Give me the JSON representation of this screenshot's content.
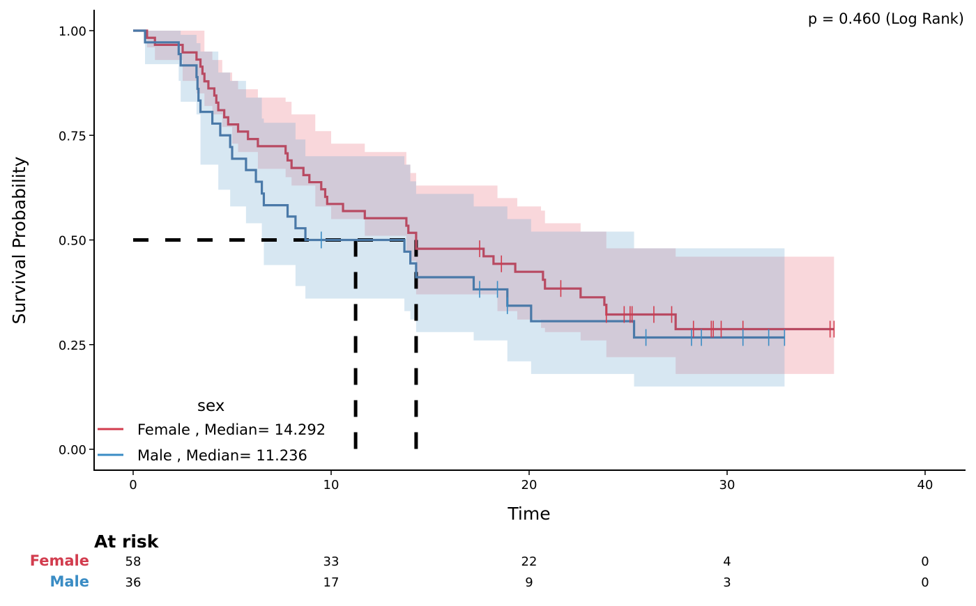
{
  "chart_data": {
    "type": "line",
    "subtype": "kaplan-meier",
    "annotation": "p = 0.460 (Log Rank)",
    "xlabel": "Time",
    "ylabel": "Survival Probability",
    "xlim": [
      -2,
      42
    ],
    "ylim": [
      -0.05,
      1.05
    ],
    "x_ticks": [
      0,
      10,
      20,
      30,
      40
    ],
    "x_tick_labels": [
      "0",
      "10",
      "20",
      "30",
      "40"
    ],
    "y_ticks": [
      0,
      0.25,
      0.5,
      0.75,
      1.0
    ],
    "y_tick_labels": [
      "0.00",
      "0.25",
      "0.50",
      "0.75",
      "1.00"
    ],
    "legend": {
      "title": "sex",
      "placement": "bottom-left"
    },
    "median_line_y": 0.5,
    "series": [
      {
        "name": "Female",
        "legend_label": "Female , Median= 14.292",
        "median": 14.292,
        "line_color": "#b84a62",
        "censor_color": "#d23c4e",
        "band_color": "#e8707f",
        "steps": [
          [
            0,
            1.0
          ],
          [
            0.7,
            0.983
          ],
          [
            1.1,
            0.966
          ],
          [
            2.5,
            0.948
          ],
          [
            3.2,
            0.931
          ],
          [
            3.4,
            0.914
          ],
          [
            3.5,
            0.897
          ],
          [
            3.6,
            0.879
          ],
          [
            3.8,
            0.862
          ],
          [
            4.1,
            0.845
          ],
          [
            4.2,
            0.828
          ],
          [
            4.3,
            0.81
          ],
          [
            4.6,
            0.793
          ],
          [
            4.8,
            0.776
          ],
          [
            5.3,
            0.759
          ],
          [
            5.8,
            0.741
          ],
          [
            6.3,
            0.724
          ],
          [
            7.7,
            0.707
          ],
          [
            7.8,
            0.69
          ],
          [
            8.0,
            0.672
          ],
          [
            8.6,
            0.655
          ],
          [
            8.9,
            0.638
          ],
          [
            9.5,
            0.621
          ],
          [
            9.7,
            0.603
          ],
          [
            9.8,
            0.586
          ],
          [
            10.6,
            0.569
          ],
          [
            11.7,
            0.552
          ],
          [
            13.8,
            0.534
          ],
          [
            13.9,
            0.517
          ],
          [
            14.292,
            0.479
          ],
          [
            17.7,
            0.461
          ],
          [
            18.2,
            0.443
          ],
          [
            19.3,
            0.424
          ],
          [
            20.7,
            0.405
          ],
          [
            20.8,
            0.384
          ],
          [
            22.6,
            0.363
          ],
          [
            23.8,
            0.345
          ],
          [
            23.9,
            0.322
          ],
          [
            27.4,
            0.287
          ],
          [
            35.4,
            0.287
          ]
        ],
        "censored": [
          17.5,
          18.6,
          21.6,
          23.9,
          24.8,
          25.1,
          25.2,
          26.3,
          27.2,
          28.3,
          29.2,
          29.3,
          29.7,
          30.8,
          35.2,
          35.4
        ],
        "ci": [
          [
            0,
            1.0,
            1.0
          ],
          [
            0.7,
            0.96,
            1.0
          ],
          [
            1.1,
            0.93,
            1.0
          ],
          [
            2.5,
            0.88,
            1.0
          ],
          [
            3.2,
            0.85,
            1.0
          ],
          [
            3.6,
            0.82,
            0.95
          ],
          [
            4.0,
            0.8,
            0.93
          ],
          [
            4.5,
            0.77,
            0.9
          ],
          [
            5.0,
            0.73,
            0.88
          ],
          [
            5.3,
            0.71,
            0.86
          ],
          [
            6.3,
            0.67,
            0.84
          ],
          [
            7.7,
            0.65,
            0.83
          ],
          [
            8.0,
            0.63,
            0.8
          ],
          [
            9.2,
            0.58,
            0.76
          ],
          [
            10.0,
            0.55,
            0.73
          ],
          [
            11.7,
            0.51,
            0.71
          ],
          [
            13.8,
            0.47,
            0.68
          ],
          [
            14.0,
            0.45,
            0.66
          ],
          [
            14.292,
            0.37,
            0.63
          ],
          [
            17.0,
            0.37,
            0.63
          ],
          [
            18.4,
            0.33,
            0.6
          ],
          [
            19.4,
            0.31,
            0.58
          ],
          [
            20.6,
            0.29,
            0.57
          ],
          [
            20.8,
            0.28,
            0.54
          ],
          [
            21.6,
            0.28,
            0.54
          ],
          [
            22.6,
            0.26,
            0.52
          ],
          [
            23.9,
            0.22,
            0.48
          ],
          [
            27.4,
            0.18,
            0.46
          ],
          [
            35.4,
            0.18,
            0.45
          ]
        ]
      },
      {
        "name": "Male",
        "legend_label": "Male , Median= 11.236",
        "median": 11.236,
        "line_color": "#4a79a8",
        "censor_color": "#3a8cc4",
        "band_color": "#6fa8d0",
        "steps": [
          [
            0,
            1.0
          ],
          [
            0.6,
            0.972
          ],
          [
            2.3,
            0.944
          ],
          [
            2.4,
            0.917
          ],
          [
            3.2,
            0.889
          ],
          [
            3.25,
            0.861
          ],
          [
            3.3,
            0.833
          ],
          [
            3.4,
            0.806
          ],
          [
            4.0,
            0.778
          ],
          [
            4.4,
            0.75
          ],
          [
            4.9,
            0.722
          ],
          [
            5.0,
            0.694
          ],
          [
            5.7,
            0.667
          ],
          [
            6.2,
            0.639
          ],
          [
            6.5,
            0.611
          ],
          [
            6.6,
            0.583
          ],
          [
            7.8,
            0.556
          ],
          [
            8.2,
            0.528
          ],
          [
            8.7,
            0.5
          ],
          [
            13.7,
            0.472
          ],
          [
            14.0,
            0.444
          ],
          [
            14.292,
            0.411
          ],
          [
            17.2,
            0.382
          ],
          [
            18.9,
            0.343
          ],
          [
            20.1,
            0.306
          ],
          [
            25.3,
            0.267
          ],
          [
            32.9,
            0.267
          ]
        ],
        "censored": [
          9.5,
          17.5,
          18.4,
          18.9,
          25.9,
          28.2,
          28.7,
          30.8,
          32.1,
          32.9
        ],
        "ci": [
          [
            0,
            1.0,
            1.0
          ],
          [
            0.6,
            0.92,
            1.0
          ],
          [
            2.3,
            0.88,
            1.0
          ],
          [
            2.4,
            0.83,
            0.99
          ],
          [
            3.2,
            0.8,
            0.97
          ],
          [
            3.4,
            0.68,
            0.95
          ],
          [
            4.3,
            0.62,
            0.9
          ],
          [
            4.9,
            0.58,
            0.88
          ],
          [
            5.7,
            0.54,
            0.84
          ],
          [
            6.5,
            0.5,
            0.79
          ],
          [
            6.6,
            0.44,
            0.78
          ],
          [
            8.2,
            0.39,
            0.74
          ],
          [
            8.7,
            0.36,
            0.7
          ],
          [
            13.7,
            0.33,
            0.68
          ],
          [
            14.0,
            0.31,
            0.64
          ],
          [
            14.292,
            0.28,
            0.61
          ],
          [
            17.2,
            0.26,
            0.58
          ],
          [
            18.9,
            0.21,
            0.55
          ],
          [
            20.1,
            0.18,
            0.52
          ],
          [
            25.3,
            0.15,
            0.48
          ],
          [
            32.9,
            0.15,
            0.48
          ]
        ]
      }
    ],
    "at_risk": {
      "title": "At risk",
      "times": [
        0,
        10,
        20,
        30,
        40
      ],
      "rows": [
        {
          "label": "Female",
          "color": "#d23c4e",
          "counts": [
            "58",
            "33",
            "22",
            "4",
            "0"
          ]
        },
        {
          "label": "Male",
          "color": "#3a8cc4",
          "counts": [
            "36",
            "17",
            "9",
            "3",
            "0"
          ]
        }
      ]
    }
  }
}
